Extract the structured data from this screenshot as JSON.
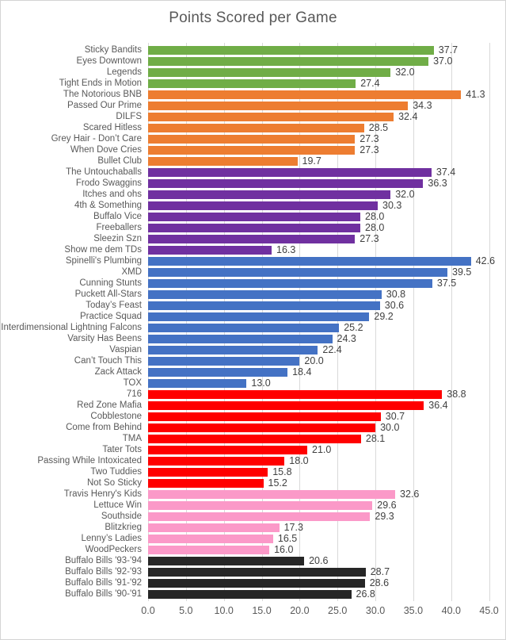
{
  "chart": {
    "title": "Points Scored per Game"
  },
  "chart_data": {
    "type": "bar",
    "orientation": "horizontal",
    "title": "Points Scored per Game",
    "xlabel": "",
    "ylabel": "",
    "xlim": [
      0,
      46.5
    ],
    "x_tick_step": 5,
    "x_ticks": [
      "0.0",
      "5.0",
      "10.0",
      "15.0",
      "20.0",
      "25.0",
      "30.0",
      "35.0",
      "40.0",
      "45.0"
    ],
    "grid": true,
    "legend": false,
    "value_labels": "one-decimal, outside end of bar",
    "colors": {
      "green": "#70AD47",
      "orange": "#ED7D31",
      "purple": "#7030A0",
      "blue": "#4472C4",
      "red": "#FF0000",
      "pink": "#FB99C8",
      "black": "#262626"
    },
    "bars": [
      {
        "label": "Sticky Bandits",
        "value": 37.7,
        "group": "green"
      },
      {
        "label": "Eyes Downtown",
        "value": 37.0,
        "group": "green"
      },
      {
        "label": "Legends",
        "value": 32.0,
        "group": "green"
      },
      {
        "label": "Tight Ends in Motion",
        "value": 27.4,
        "group": "green"
      },
      {
        "label": "The Notorious BNB",
        "value": 41.3,
        "group": "orange"
      },
      {
        "label": "Passed Our Prime",
        "value": 34.3,
        "group": "orange"
      },
      {
        "label": "DILFS",
        "value": 32.4,
        "group": "orange"
      },
      {
        "label": "Scared Hitless",
        "value": 28.5,
        "group": "orange"
      },
      {
        "label": "Grey Hair - Don’t Care",
        "value": 27.3,
        "group": "orange"
      },
      {
        "label": "When Dove Cries",
        "value": 27.3,
        "group": "orange"
      },
      {
        "label": "Bullet Club",
        "value": 19.7,
        "group": "orange"
      },
      {
        "label": "The Untouchaballs",
        "value": 37.4,
        "group": "purple"
      },
      {
        "label": "Frodo Swaggins",
        "value": 36.3,
        "group": "purple"
      },
      {
        "label": "Itches and ohs",
        "value": 32.0,
        "group": "purple"
      },
      {
        "label": "4th & Something",
        "value": 30.3,
        "group": "purple"
      },
      {
        "label": "Buffalo Vice",
        "value": 28.0,
        "group": "purple"
      },
      {
        "label": "Freeballers",
        "value": 28.0,
        "group": "purple"
      },
      {
        "label": "Sleezin Szn",
        "value": 27.3,
        "group": "purple"
      },
      {
        "label": "Show me dem TDs",
        "value": 16.3,
        "group": "purple"
      },
      {
        "label": "Spinelli's Plumbing",
        "value": 42.6,
        "group": "blue"
      },
      {
        "label": "XMD",
        "value": 39.5,
        "group": "blue"
      },
      {
        "label": "Cunning Stunts",
        "value": 37.5,
        "group": "blue"
      },
      {
        "label": "Puckett All-Stars",
        "value": 30.8,
        "group": "blue"
      },
      {
        "label": "Today’s Feast",
        "value": 30.6,
        "group": "blue"
      },
      {
        "label": "Practice Squad",
        "value": 29.2,
        "group": "blue"
      },
      {
        "label": "Interdimensional Lightning Falcons",
        "value": 25.2,
        "group": "blue"
      },
      {
        "label": "Varsity Has Beens",
        "value": 24.3,
        "group": "blue"
      },
      {
        "label": "Vaspian",
        "value": 22.4,
        "group": "blue"
      },
      {
        "label": "Can’t Touch This",
        "value": 20.0,
        "group": "blue"
      },
      {
        "label": "Zack Attack",
        "value": 18.4,
        "group": "blue"
      },
      {
        "label": "TOX",
        "value": 13.0,
        "group": "blue"
      },
      {
        "label": "716",
        "value": 38.8,
        "group": "red"
      },
      {
        "label": "Red Zone Mafia",
        "value": 36.4,
        "group": "red"
      },
      {
        "label": "Cobblestone",
        "value": 30.7,
        "group": "red"
      },
      {
        "label": "Come from Behind",
        "value": 30.0,
        "group": "red"
      },
      {
        "label": "TMA",
        "value": 28.1,
        "group": "red"
      },
      {
        "label": "Tater Tots",
        "value": 21.0,
        "group": "red"
      },
      {
        "label": "Passing While Intoxicated",
        "value": 18.0,
        "group": "red"
      },
      {
        "label": "Two Tuddies",
        "value": 15.8,
        "group": "red"
      },
      {
        "label": "Not So Sticky",
        "value": 15.2,
        "group": "red"
      },
      {
        "label": "Travis Henry's Kids",
        "value": 32.6,
        "group": "pink"
      },
      {
        "label": "Lettuce Win",
        "value": 29.6,
        "group": "pink"
      },
      {
        "label": "Southside",
        "value": 29.3,
        "group": "pink"
      },
      {
        "label": "Blitzkrieg",
        "value": 17.3,
        "group": "pink"
      },
      {
        "label": "Lenny’s Ladies",
        "value": 16.5,
        "group": "pink"
      },
      {
        "label": "WoodPeckers",
        "value": 16.0,
        "group": "pink"
      },
      {
        "label": "Buffalo Bills '93-'94",
        "value": 20.6,
        "group": "black"
      },
      {
        "label": "Buffalo Bills '92-'93",
        "value": 28.7,
        "group": "black"
      },
      {
        "label": "Buffalo Bills '91-'92",
        "value": 28.6,
        "group": "black"
      },
      {
        "label": "Buffalo Bills '90-'91",
        "value": 26.8,
        "group": "black"
      }
    ]
  }
}
